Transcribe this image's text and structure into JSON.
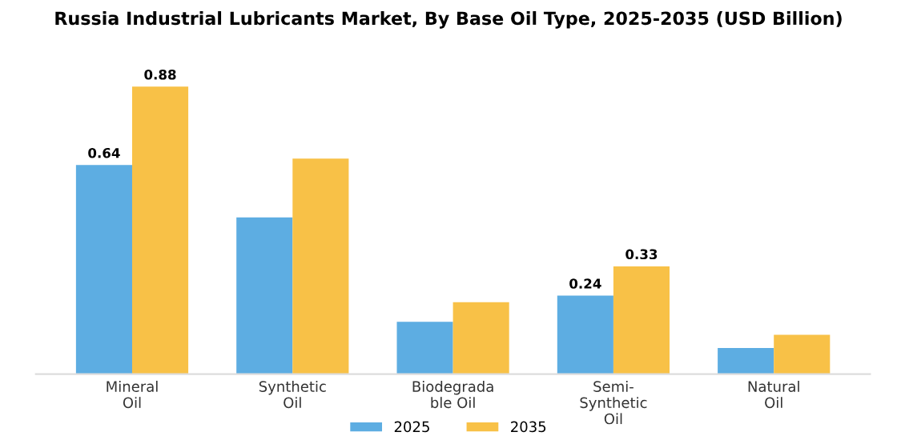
{
  "chart_data": {
    "type": "bar",
    "title": "Russia Industrial Lubricants Market, By Base Oil Type, 2025-2035 (USD Billion)",
    "categories": [
      "Mineral\nOil",
      "Synthetic\nOil",
      "Biodegrada\nble Oil",
      "Semi-\nSynthetic\nOil",
      "Natural\nOil"
    ],
    "series": [
      {
        "name": "2025",
        "color": "#5dade2",
        "values": [
          0.64,
          0.48,
          0.16,
          0.24,
          0.08
        ],
        "value_labels": [
          "0.64",
          null,
          null,
          "0.24",
          null
        ]
      },
      {
        "name": "2035",
        "color": "#f8c147",
        "values": [
          0.88,
          0.66,
          0.22,
          0.33,
          0.12
        ],
        "value_labels": [
          "0.88",
          null,
          null,
          "0.33",
          null
        ]
      }
    ],
    "legend": "bottom",
    "grid": false
  }
}
